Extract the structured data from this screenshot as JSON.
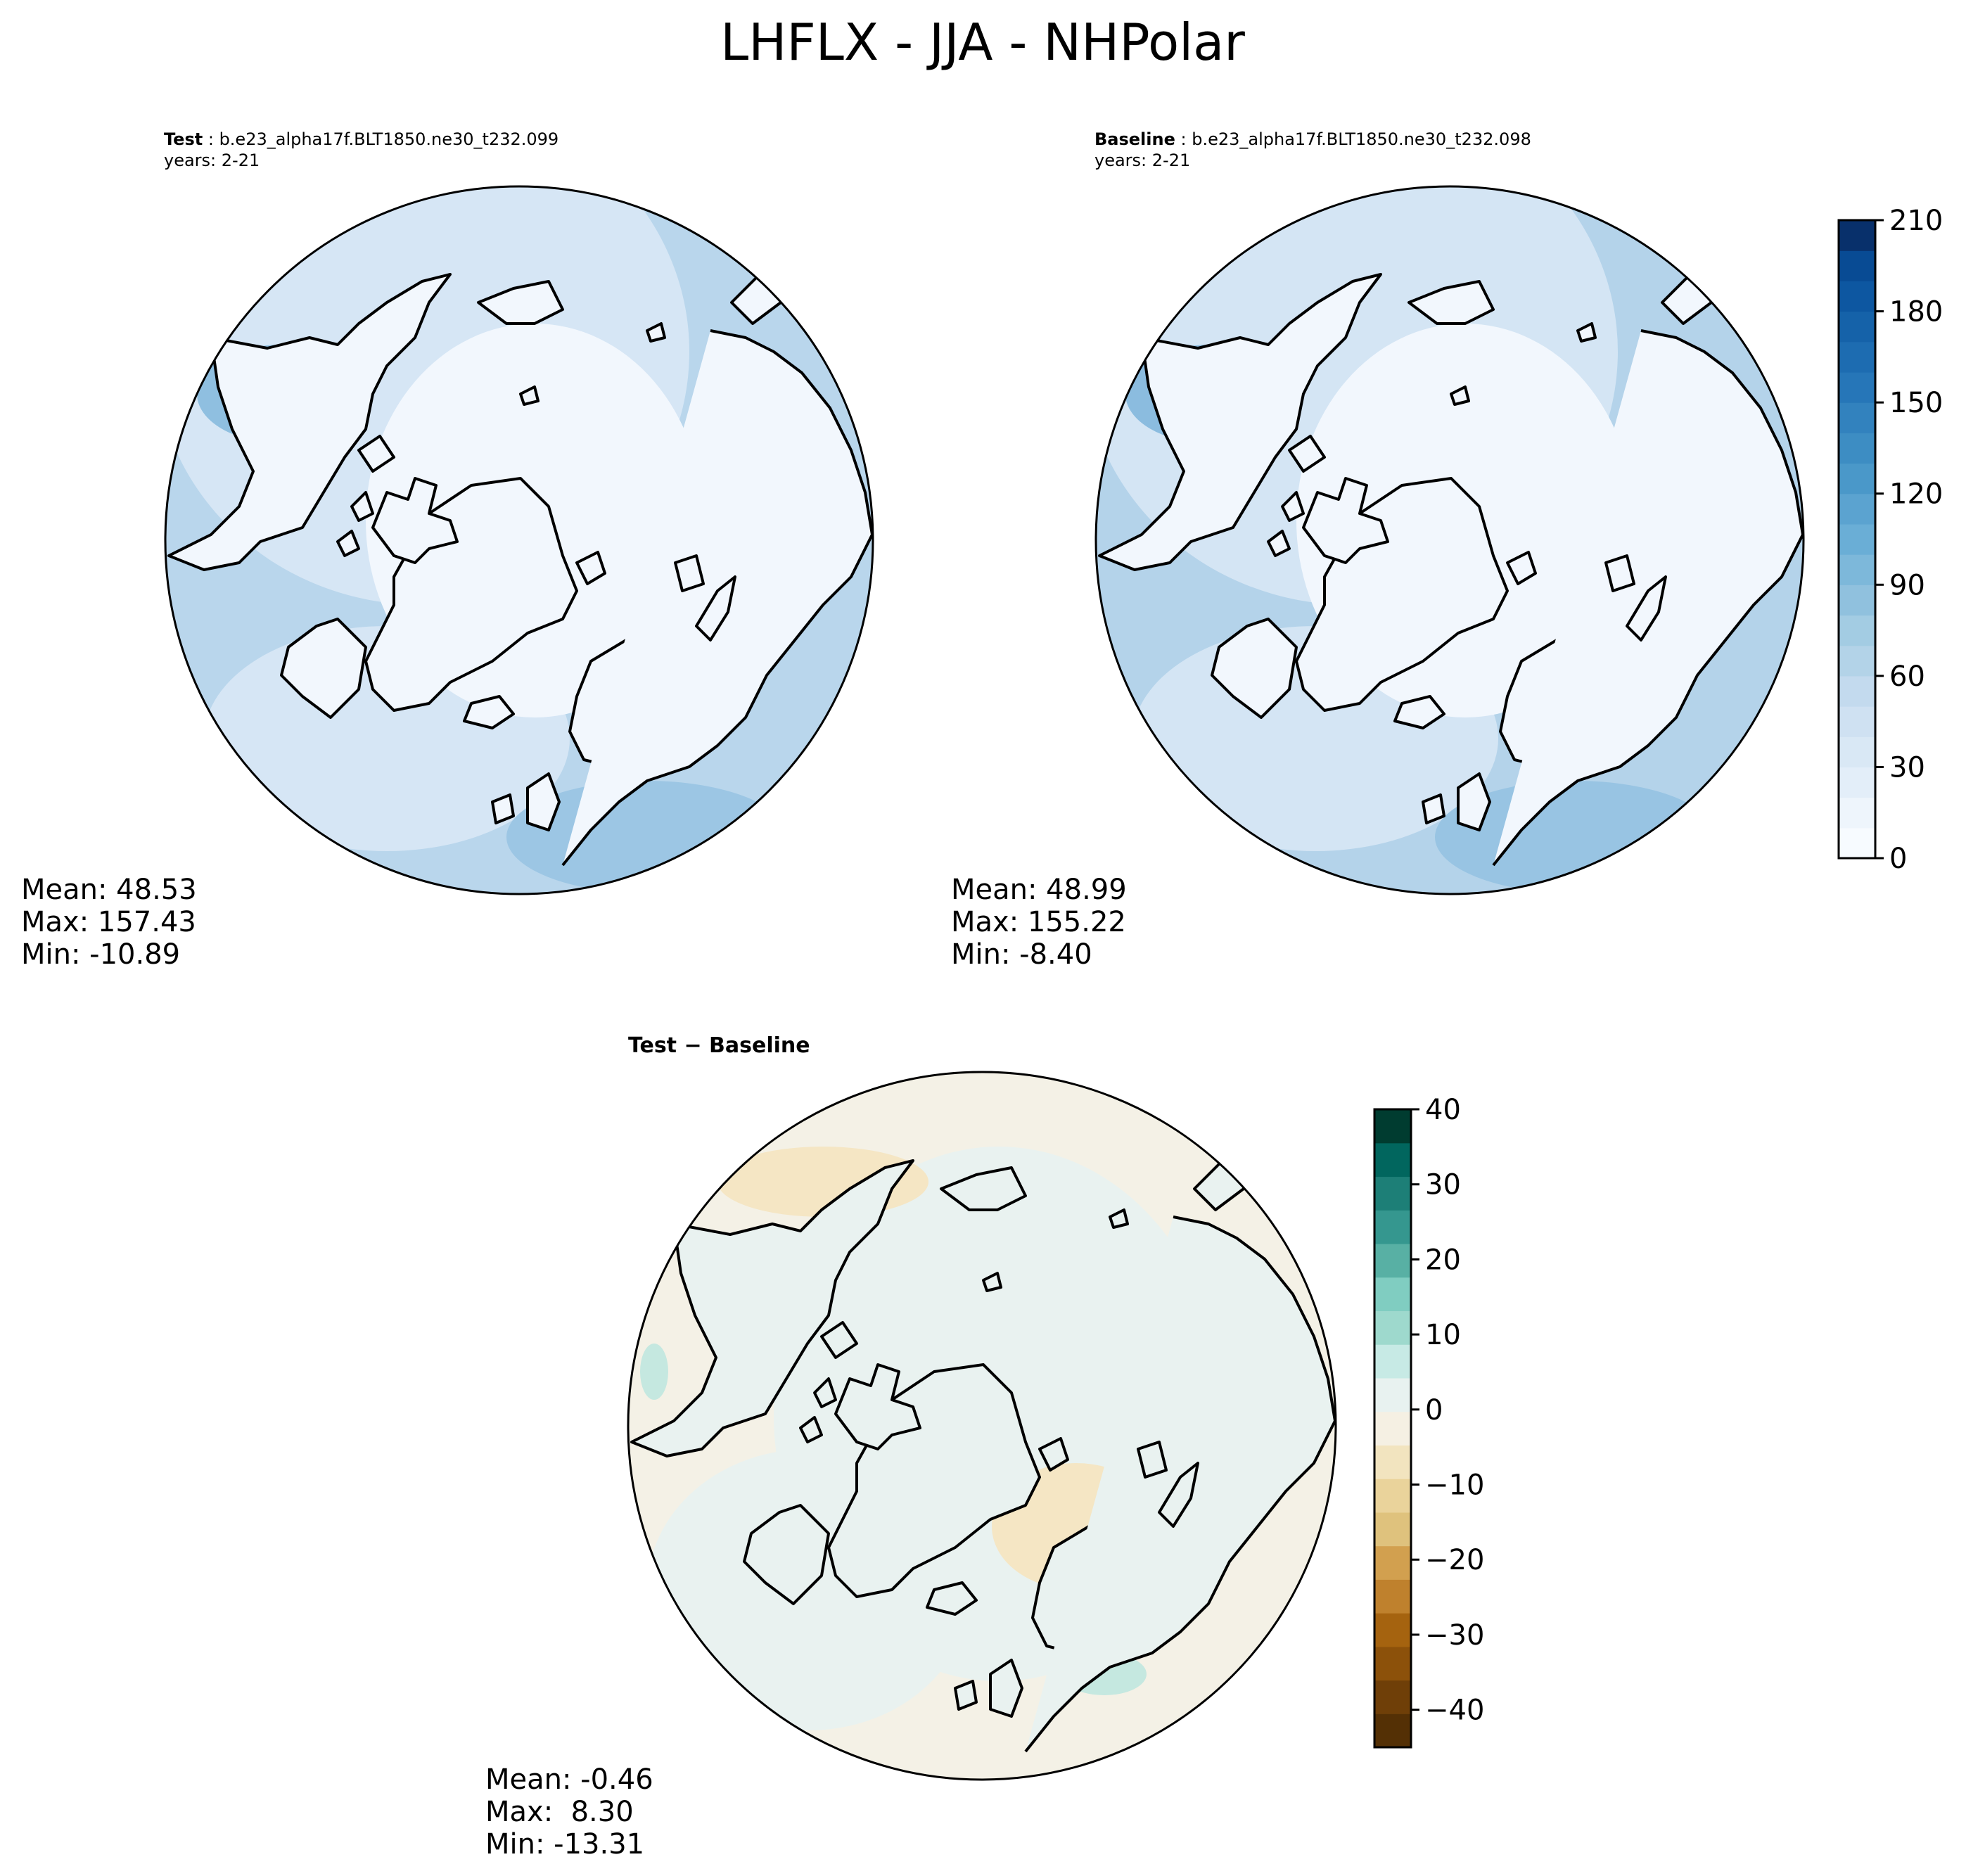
{
  "title": "LHFLX - JJA - NHPolar",
  "panels": [
    {
      "id": "test",
      "label_bold": "Test",
      "label_rest": " : b.e23_alpha17f.BLT1850.ne30_t232.099",
      "years": "years: 2-21",
      "stats": [
        "Mean: 48.53",
        "Max: 157.43",
        "Min: -10.89"
      ]
    },
    {
      "id": "baseline",
      "label_bold": "Baseline",
      "label_rest": " : b.e23_alpha17f.BLT1850.ne30_t232.098",
      "years": "years: 2-21",
      "stats": [
        "Mean: 48.99",
        "Max: 155.22",
        "Min: -8.40"
      ]
    },
    {
      "id": "diff",
      "label_bold": "Test − Baseline",
      "label_rest": "",
      "years": "",
      "stats": [
        "Mean: -0.46",
        "Max:  8.30",
        "Min: -13.31"
      ]
    }
  ],
  "colorbar_main": {
    "min": 0,
    "max": 210,
    "step": 10,
    "ticks": [
      0,
      30,
      60,
      90,
      120,
      150,
      180,
      210
    ],
    "tick_labels": [
      "0",
      "30",
      "60",
      "90",
      "120",
      "150",
      "180",
      "210"
    ],
    "colors": [
      "#f7fbff",
      "#eef5fc",
      "#e3eef9",
      "#d9e8f5",
      "#cfe1f2",
      "#c3daee",
      "#b3d3e8",
      "#a3cce3",
      "#90c1de",
      "#7db8da",
      "#6aaed6",
      "#5ba3d0",
      "#4a98c9",
      "#3d8dc3",
      "#3282be",
      "#2676b8",
      "#1d6cb1",
      "#1562a9",
      "#0d57a1",
      "#084b94",
      "#08306b"
    ]
  },
  "colorbar_diff": {
    "min": -45,
    "max": 40,
    "step": 5,
    "ticks": [
      40,
      30,
      20,
      10,
      0,
      -10,
      -20,
      -30,
      -40
    ],
    "tick_labels": [
      "40",
      "30",
      "20",
      "10",
      "0",
      "−10",
      "−20",
      "−30",
      "−40"
    ],
    "colors": [
      "#543005",
      "#6f3f08",
      "#8c510a",
      "#a5630f",
      "#bf812d",
      "#d2a04f",
      "#dfc27d",
      "#ead39b",
      "#f2e4bf",
      "#f5f0e3",
      "#e8f2f0",
      "#c7eae5",
      "#9ed9cd",
      "#80cdc1",
      "#58b0a4",
      "#35978f",
      "#1d7f77",
      "#01665e",
      "#003c30"
    ]
  },
  "map_colors": {
    "land_outline": "#000000",
    "test_ocean": "#b9d6ec",
    "baseline_ocean": "#b4d3ea",
    "arctic": "#f2f7fd",
    "diff_base": "#f4f1e6",
    "diff_cool": "#e9f2f0",
    "diff_warm": "#f5e6c4",
    "diff_teal": "#c5e8e0"
  }
}
